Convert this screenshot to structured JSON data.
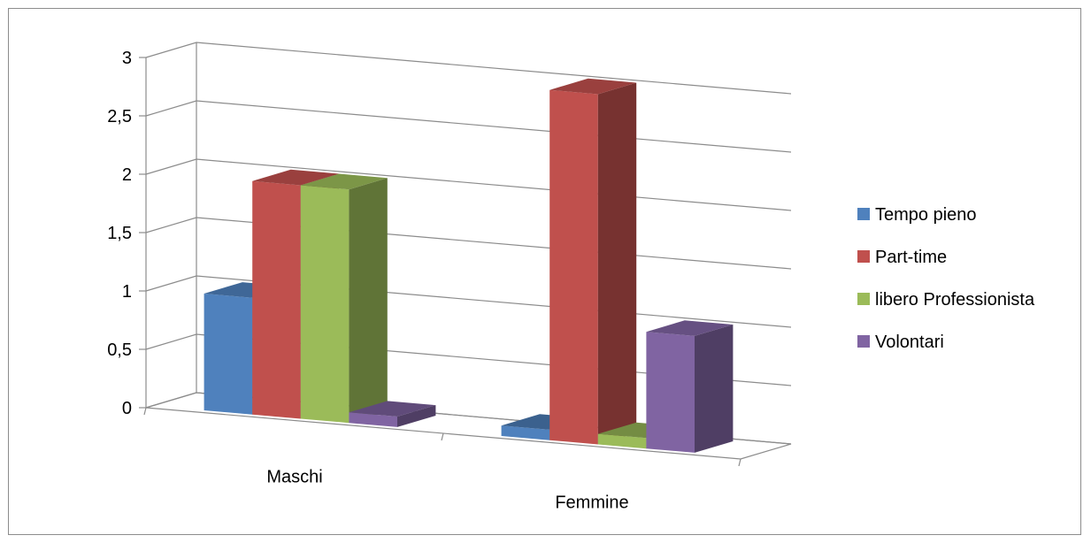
{
  "chart_data": {
    "type": "bar",
    "categories": [
      "Maschi",
      "Femmine"
    ],
    "series": [
      {
        "name": "Tempo pieno",
        "values": [
          1,
          0
        ],
        "color": "#4f81bd"
      },
      {
        "name": "Part-time",
        "values": [
          2,
          3
        ],
        "color": "#c0504d"
      },
      {
        "name": "libero Professionista",
        "values": [
          2,
          0
        ],
        "color": "#9bbb59"
      },
      {
        "name": "Volontari",
        "values": [
          0,
          1
        ],
        "color": "#8064a2"
      }
    ],
    "y_tick_labels": [
      "0",
      "0,5",
      "1",
      "1,5",
      "2",
      "2,5",
      "3"
    ],
    "ylim": [
      0,
      3
    ],
    "grid": true,
    "legend_position": "right",
    "style": "3d-clustered-column"
  }
}
